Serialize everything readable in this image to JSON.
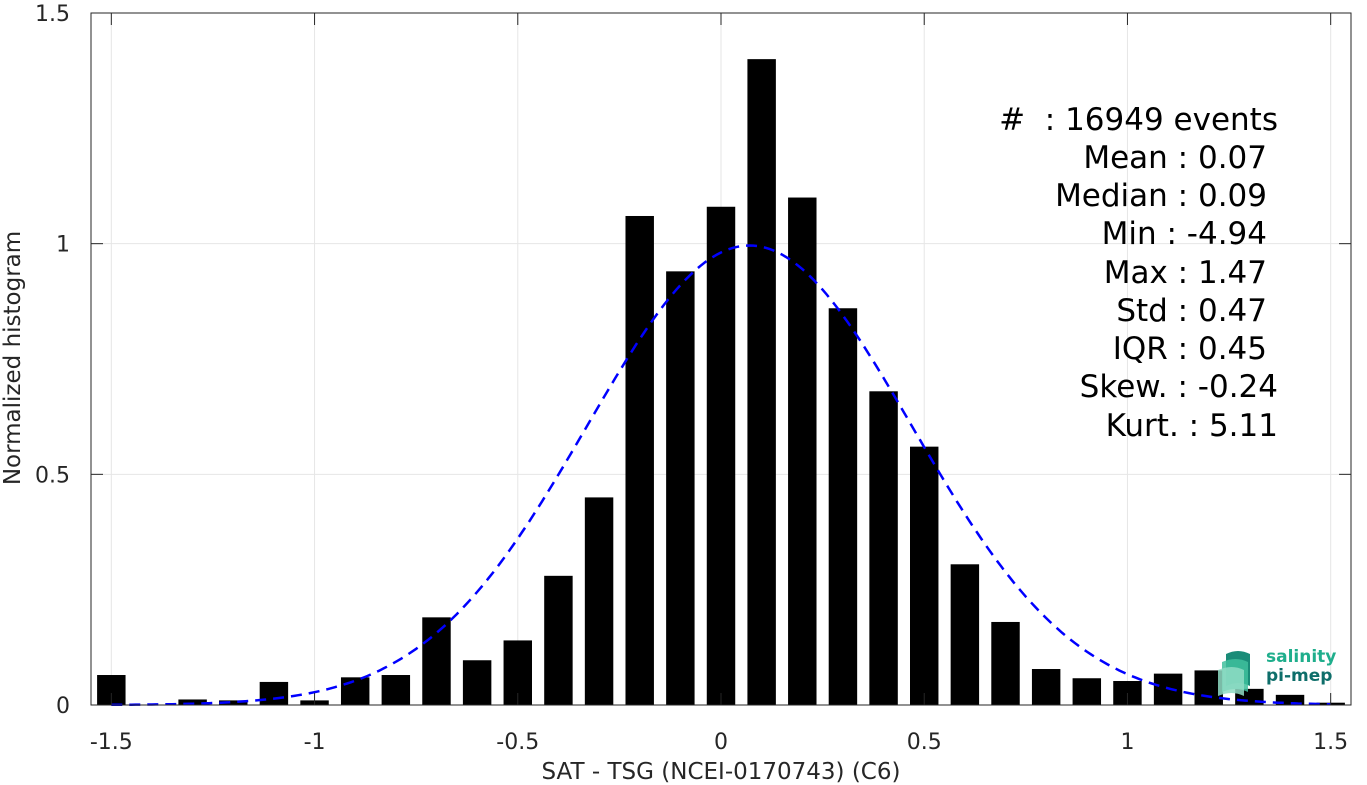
{
  "chart_data": {
    "type": "bar",
    "xlabel": "SAT - TSG (NCEI-0170743) (C6)",
    "ylabel": "Normalized histogram",
    "xlim": [
      -1.55,
      1.55
    ],
    "ylim": [
      0,
      1.5
    ],
    "grid": true,
    "x_ticks": [
      -1.5,
      -1,
      -0.5,
      0,
      0.5,
      1,
      1.5
    ],
    "x_tick_labels": [
      "-1.5",
      "-1",
      "-0.5",
      "0",
      "0.5",
      "1",
      "1.5"
    ],
    "y_ticks": [
      0,
      0.5,
      1,
      1.5
    ],
    "y_tick_labels": [
      "0",
      "0.5",
      "1",
      "1.5"
    ],
    "bin_width": 0.1,
    "bar_width": 0.07,
    "bars": {
      "x": [
        -1.5,
        -1.4,
        -1.3,
        -1.2,
        -1.1,
        -1.0,
        -0.9,
        -0.8,
        -0.7,
        -0.6,
        -0.5,
        -0.4,
        -0.3,
        -0.2,
        -0.1,
        0.0,
        0.1,
        0.2,
        0.3,
        0.4,
        0.5,
        0.6,
        0.7,
        0.8,
        0.9,
        1.0,
        1.1,
        1.2,
        1.3,
        1.4,
        1.5
      ],
      "values": [
        0.065,
        0.0,
        0.012,
        0.01,
        0.05,
        0.01,
        0.06,
        0.065,
        0.19,
        0.097,
        0.14,
        0.28,
        0.45,
        1.06,
        0.94,
        1.08,
        1.4,
        1.1,
        0.86,
        0.68,
        0.56,
        0.305,
        0.18,
        0.078,
        0.058,
        0.052,
        0.068,
        0.075,
        0.035,
        0.022,
        0.005
      ],
      "color": "#000000"
    },
    "fit": {
      "type": "gaussian",
      "mean": 0.07,
      "std": 0.4,
      "x_range": [
        -1.5,
        1.5
      ],
      "style": "dashed",
      "color": "#0000ff"
    }
  },
  "stats": {
    "count": "#  : 16949 events",
    "mean": "Mean : 0.07",
    "median": "Median : 0.09",
    "min": "Min : -4.94",
    "max": "Max : 1.47",
    "std": "Std : 0.47",
    "iqr": "IQR : 0.45",
    "skew": "Skew. : -0.24",
    "kurt": "Kurt. : 5.11"
  },
  "logo": {
    "line1": "salinity",
    "line2": "pi-mep",
    "color1": "#1fae8c",
    "color2": "#0e6e6a"
  }
}
